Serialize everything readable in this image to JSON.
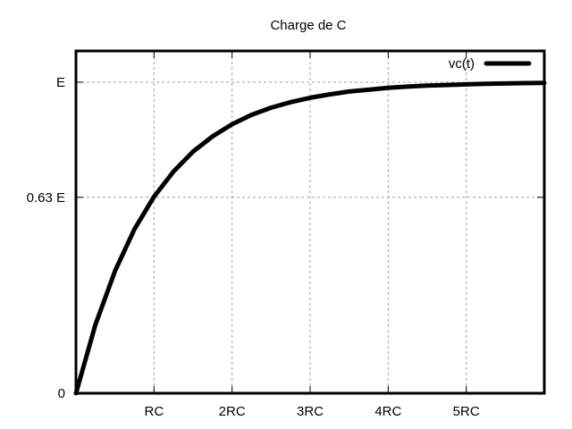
{
  "chart_data": {
    "type": "line",
    "title": "Charge de C",
    "xlabel": "",
    "ylabel": "",
    "xlim": [
      0,
      6
    ],
    "ylim": [
      0,
      1
    ],
    "x_unit": "RC",
    "y_unit": "E",
    "x_ticks": [
      {
        "value": 1,
        "label": "RC"
      },
      {
        "value": 2,
        "label": "2RC"
      },
      {
        "value": 3,
        "label": "3RC"
      },
      {
        "value": 4,
        "label": "4RC"
      },
      {
        "value": 5,
        "label": "5RC"
      }
    ],
    "y_ticks": [
      {
        "value": 0,
        "label": "0"
      },
      {
        "value": 0.63,
        "label": "0.63 E"
      },
      {
        "value": 1,
        "label": "E"
      }
    ],
    "grid": true,
    "legend_position": "top-right",
    "series": [
      {
        "name": "vc(t)",
        "color": "#000000",
        "x": [
          0,
          0.25,
          0.5,
          0.75,
          1,
          1.25,
          1.5,
          1.75,
          2,
          2.25,
          2.5,
          2.75,
          3,
          3.25,
          3.5,
          3.75,
          4,
          4.25,
          4.5,
          4.75,
          5,
          5.25,
          5.5,
          5.75,
          6
        ],
        "y": [
          0,
          0.221,
          0.393,
          0.528,
          0.632,
          0.713,
          0.777,
          0.826,
          0.865,
          0.895,
          0.918,
          0.936,
          0.95,
          0.961,
          0.97,
          0.976,
          0.982,
          0.986,
          0.989,
          0.991,
          0.993,
          0.995,
          0.996,
          0.997,
          0.998
        ]
      }
    ]
  }
}
